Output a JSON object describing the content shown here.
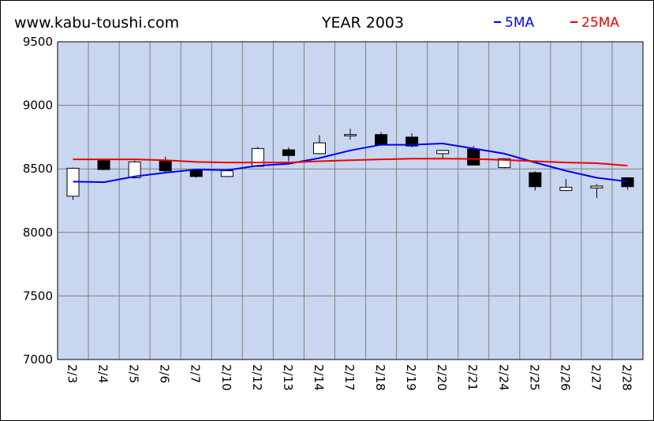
{
  "site_label": "www.kabu-toushi.com",
  "chart_data": {
    "type": "candlestick",
    "title": "YEAR 2003",
    "xlabel": "",
    "ylabel": "",
    "ylim": [
      7000,
      9500
    ],
    "yticks": [
      7000,
      7500,
      8000,
      8500,
      9000,
      9500
    ],
    "grid": true,
    "legend_position": "top-right",
    "categories": [
      "2/3",
      "2/4",
      "2/5",
      "2/6",
      "2/7",
      "2/10",
      "2/12",
      "2/13",
      "2/14",
      "2/17",
      "2/18",
      "2/19",
      "2/20",
      "2/21",
      "2/24",
      "2/25",
      "2/26",
      "2/27",
      "2/28"
    ],
    "ohlc": [
      {
        "open": 8285,
        "high": 8510,
        "low": 8255,
        "close": 8505
      },
      {
        "open": 8565,
        "high": 8575,
        "low": 8490,
        "close": 8495
      },
      {
        "open": 8430,
        "high": 8565,
        "low": 8425,
        "close": 8555
      },
      {
        "open": 8560,
        "high": 8595,
        "low": 8470,
        "close": 8485
      },
      {
        "open": 8490,
        "high": 8500,
        "low": 8430,
        "close": 8440
      },
      {
        "open": 8440,
        "high": 8500,
        "low": 8435,
        "close": 8485
      },
      {
        "open": 8520,
        "high": 8675,
        "low": 8515,
        "close": 8660
      },
      {
        "open": 8650,
        "high": 8670,
        "low": 8560,
        "close": 8605
      },
      {
        "open": 8620,
        "high": 8765,
        "low": 8615,
        "close": 8705
      },
      {
        "open": 8760,
        "high": 8815,
        "low": 8730,
        "close": 8770
      },
      {
        "open": 8770,
        "high": 8790,
        "low": 8680,
        "close": 8690
      },
      {
        "open": 8750,
        "high": 8780,
        "low": 8670,
        "close": 8680
      },
      {
        "open": 8620,
        "high": 8650,
        "low": 8580,
        "close": 8645
      },
      {
        "open": 8655,
        "high": 8680,
        "low": 8525,
        "close": 8530
      },
      {
        "open": 8510,
        "high": 8585,
        "low": 8505,
        "close": 8580
      },
      {
        "open": 8470,
        "high": 8480,
        "low": 8330,
        "close": 8360
      },
      {
        "open": 8330,
        "high": 8420,
        "low": 8325,
        "close": 8355
      },
      {
        "open": 8350,
        "high": 8380,
        "low": 8270,
        "close": 8365
      },
      {
        "open": 8430,
        "high": 8435,
        "low": 8335,
        "close": 8360
      }
    ],
    "series": [
      {
        "name": "5MA",
        "color": "#0000ee",
        "values": [
          8400,
          8395,
          8440,
          8470,
          8495,
          8490,
          8525,
          8540,
          8585,
          8645,
          8690,
          8690,
          8700,
          8660,
          8620,
          8550,
          8485,
          8430,
          8400
        ]
      },
      {
        "name": "25MA",
        "color": "#ee0000",
        "values": [
          8575,
          8575,
          8575,
          8568,
          8555,
          8550,
          8550,
          8550,
          8560,
          8568,
          8575,
          8580,
          8580,
          8578,
          8570,
          8560,
          8550,
          8545,
          8525
        ]
      }
    ],
    "colors": {
      "plot_bg": "#c8d6f0",
      "grid": "#808080",
      "up": "#ffffff",
      "down": "#000000"
    }
  }
}
